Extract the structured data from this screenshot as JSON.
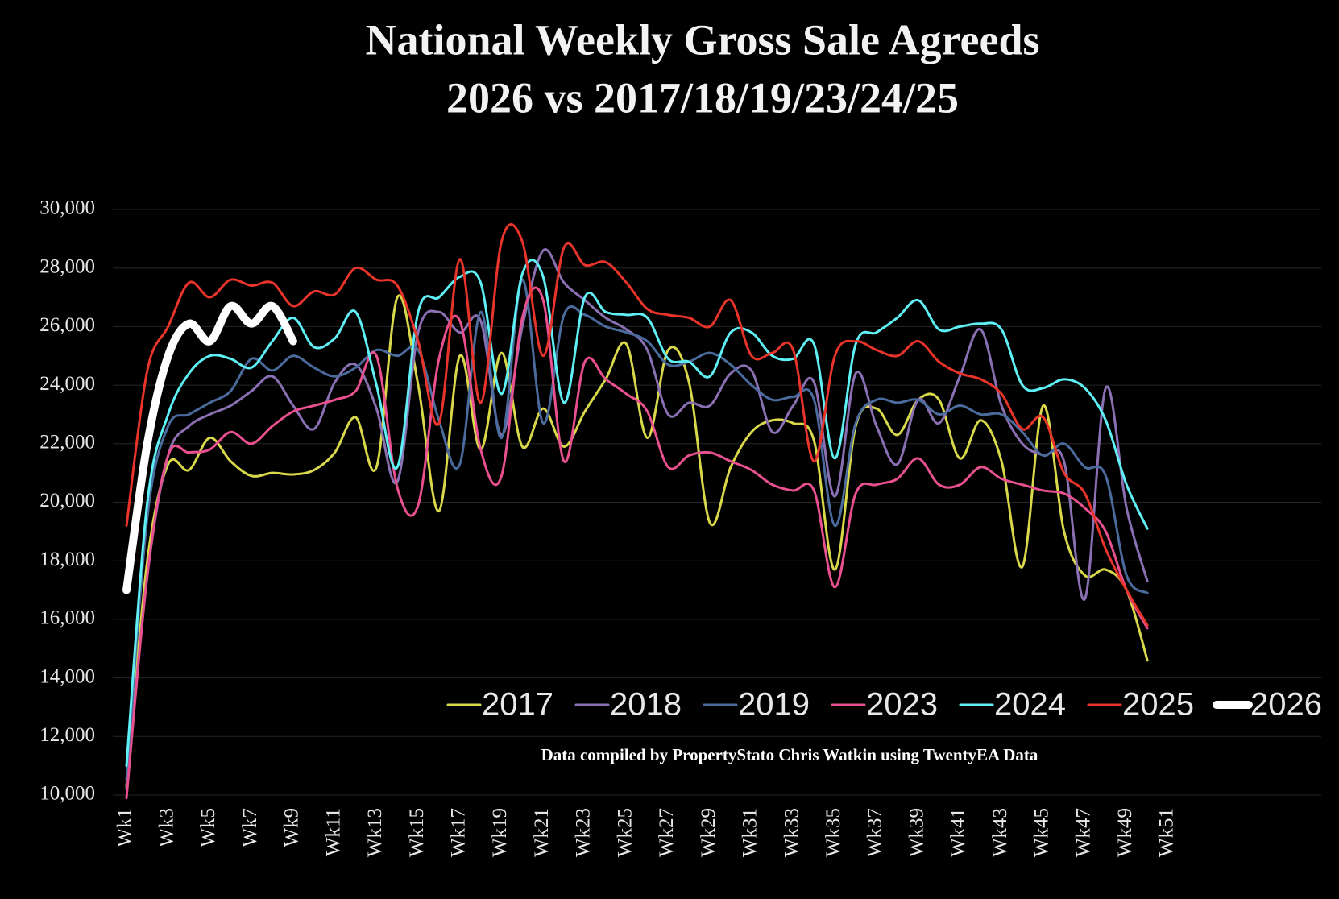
{
  "chart_data": {
    "type": "line",
    "title": [
      "National Weekly Gross Sale Agreeds",
      "2026 vs 2017/18/19/23/24/25"
    ],
    "note": "Data compiled by PropertyStato Chris Watkin using TwentyEA Data",
    "categories": [
      "Wk1",
      null,
      "Wk3",
      null,
      "Wk5",
      null,
      "Wk7",
      null,
      "Wk9",
      null,
      "Wk11",
      null,
      "Wk13",
      null,
      "Wk15",
      null,
      "Wk17",
      null,
      "Wk19",
      null,
      "Wk21",
      null,
      "Wk23",
      null,
      "Wk25",
      null,
      "Wk27",
      null,
      "Wk29",
      null,
      "Wk31",
      null,
      "Wk33",
      null,
      "Wk35",
      null,
      "Wk37",
      null,
      "Wk39",
      null,
      "Wk41",
      null,
      "Wk43",
      null,
      "Wk45",
      null,
      "Wk47",
      null,
      "Wk49",
      null,
      "Wk51"
    ],
    "ylim": [
      10000,
      30000
    ],
    "yticks": [
      {
        "value": 10000,
        "label": "10,000"
      },
      {
        "value": 12000,
        "label": "12,000"
      },
      {
        "value": 14000,
        "label": "14,000"
      },
      {
        "value": 16000,
        "label": "16,000"
      },
      {
        "value": 18000,
        "label": "18,000"
      },
      {
        "value": 20000,
        "label": "20,000"
      },
      {
        "value": 22000,
        "label": "22,000"
      },
      {
        "value": 24000,
        "label": "24,000"
      },
      {
        "value": 26000,
        "label": "26,000"
      },
      {
        "value": 28000,
        "label": "28,000"
      },
      {
        "value": 30000,
        "label": "30,000"
      }
    ],
    "grid": true,
    "legend": "lower right",
    "series": [
      {
        "name": "2017",
        "color": "#d8d84a",
        "width": 3,
        "values": [
          10300,
          18000,
          21300,
          21100,
          22200,
          21400,
          20900,
          21000,
          20950,
          21100,
          21700,
          22900,
          21200,
          27000,
          24000,
          19700,
          25000,
          21800,
          25100,
          21900,
          23200,
          21900,
          23100,
          24200,
          25400,
          22200,
          25200,
          24100,
          19300,
          21200,
          22400,
          22800,
          22700,
          22100,
          17700,
          22600,
          23200,
          22300,
          23500,
          23500,
          21500,
          22800,
          21400,
          17800,
          23300,
          19000,
          17500,
          17700,
          17000,
          14600,
          null
        ]
      },
      {
        "name": "2018",
        "color": "#8a70b2",
        "width": 3,
        "values": [
          10200,
          17500,
          21600,
          22600,
          23000,
          23300,
          23800,
          24300,
          23300,
          22500,
          24100,
          24700,
          23200,
          20700,
          25800,
          26500,
          25800,
          26200,
          22300,
          26000,
          28600,
          27500,
          26900,
          26300,
          25900,
          25200,
          23000,
          23400,
          23300,
          24400,
          24500,
          22400,
          23300,
          24100,
          20200,
          24400,
          22600,
          21300,
          23500,
          22700,
          24300,
          25900,
          23300,
          22000,
          21600,
          21400,
          16700,
          23900,
          19800,
          17300,
          null
        ]
      },
      {
        "name": "2019",
        "color": "#4a6b9c",
        "width": 3,
        "values": [
          10500,
          19500,
          22600,
          23000,
          23400,
          23800,
          24900,
          24500,
          25000,
          24600,
          24300,
          24600,
          25200,
          25000,
          25200,
          22800,
          21300,
          26500,
          22200,
          27600,
          22700,
          26400,
          26400,
          26000,
          25800,
          25500,
          24700,
          24800,
          25100,
          24700,
          24000,
          23500,
          23600,
          23500,
          19200,
          22700,
          23500,
          23400,
          23500,
          23000,
          23300,
          23000,
          23000,
          22400,
          21600,
          22000,
          21200,
          20900,
          17500,
          16900,
          null
        ]
      },
      {
        "name": "2023",
        "color": "#e8508f",
        "width": 3,
        "values": [
          9900,
          17500,
          21600,
          21700,
          21800,
          22400,
          22000,
          22600,
          23100,
          23300,
          23500,
          23800,
          25000,
          20500,
          19900,
          24900,
          26200,
          21800,
          20900,
          26300,
          26900,
          21400,
          24800,
          24200,
          23700,
          23100,
          21200,
          21600,
          21700,
          21400,
          21100,
          20600,
          20400,
          20400,
          17100,
          20300,
          20600,
          20800,
          21500,
          20600,
          20600,
          21200,
          20800,
          20600,
          20400,
          20300,
          19800,
          19000,
          17000,
          15700,
          null
        ]
      },
      {
        "name": "2024",
        "color": "#5ff0f5",
        "width": 3,
        "values": [
          11000,
          20000,
          23000,
          24400,
          25000,
          24900,
          24600,
          25500,
          26300,
          25300,
          25600,
          26500,
          24000,
          21200,
          26500,
          27000,
          27700,
          27500,
          23700,
          27800,
          27700,
          23400,
          27000,
          26500,
          26400,
          26300,
          24900,
          24800,
          24300,
          25800,
          25800,
          25000,
          24900,
          25400,
          21500,
          25400,
          25800,
          26300,
          26900,
          25900,
          26000,
          26100,
          25900,
          24000,
          23900,
          24200,
          23900,
          22800,
          20600,
          19100,
          null
        ]
      },
      {
        "name": "2025",
        "color": "#e8342a",
        "width": 3,
        "values": [
          19200,
          24500,
          26000,
          27500,
          27000,
          27600,
          27400,
          27500,
          26700,
          27200,
          27100,
          28000,
          27600,
          27400,
          25500,
          22700,
          28300,
          23400,
          28900,
          28900,
          25000,
          28700,
          28100,
          28200,
          27500,
          26600,
          26400,
          26300,
          26000,
          26900,
          25000,
          25100,
          25200,
          21400,
          25000,
          25500,
          25200,
          25000,
          25500,
          24800,
          24400,
          24200,
          23700,
          22500,
          22900,
          21000,
          20300,
          18400,
          17000,
          15800,
          null
        ]
      },
      {
        "name": "2026",
        "color": "#ffffff",
        "width": 10,
        "values": [
          17000,
          22000,
          25000,
          26100,
          25500,
          26700,
          26100,
          26700,
          25500,
          null,
          null,
          null,
          null,
          null,
          null,
          null,
          null,
          null,
          null,
          null,
          null,
          null,
          null,
          null,
          null,
          null,
          null,
          null,
          null,
          null,
          null,
          null,
          null,
          null,
          null,
          null,
          null,
          null,
          null,
          null,
          null,
          null,
          null,
          null,
          null,
          null,
          null,
          null,
          null,
          null,
          null
        ]
      }
    ]
  }
}
